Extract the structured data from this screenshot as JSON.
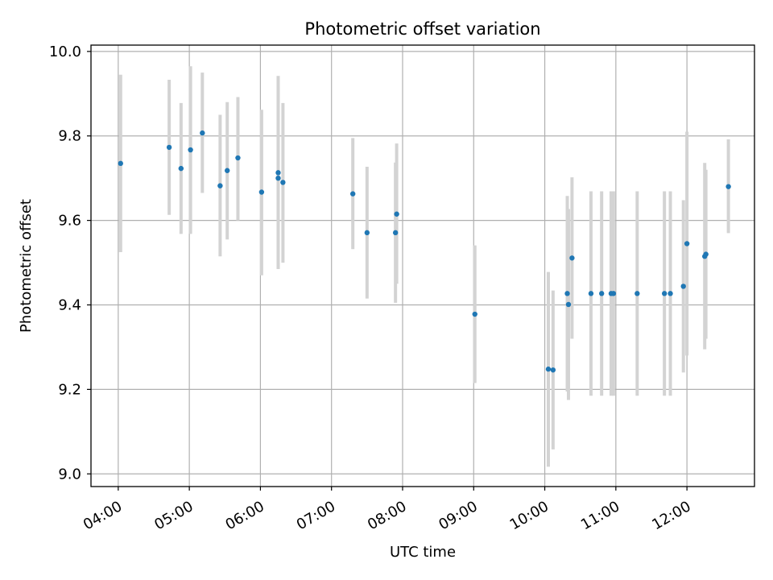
{
  "chart_data": {
    "type": "scatter",
    "title": "Photometric offset variation",
    "xlabel": "UTC time",
    "ylabel": "Photometric offset",
    "grid": true,
    "xlim": [
      "03:37",
      "12:57"
    ],
    "ylim": [
      8.97,
      10.015
    ],
    "x_ticks": [
      "04:00",
      "05:00",
      "06:00",
      "07:00",
      "08:00",
      "09:00",
      "10:00",
      "11:00",
      "12:00"
    ],
    "y_ticks": [
      9.0,
      9.2,
      9.4,
      9.6,
      9.8,
      10.0
    ],
    "y_tick_labels": [
      "9.0",
      "9.2",
      "9.4",
      "9.6",
      "9.8",
      "10.0"
    ],
    "point_color": "#1f77b4",
    "errorbar_color": "#d3d3d3",
    "series": [
      {
        "points": [
          {
            "x": "04:02",
            "y": 9.735,
            "err_low": 9.525,
            "err_high": 9.945
          },
          {
            "x": "04:43",
            "y": 9.773,
            "err_low": 9.613,
            "err_high": 9.933
          },
          {
            "x": "04:53",
            "y": 9.723,
            "err_low": 9.568,
            "err_high": 9.878
          },
          {
            "x": "05:01",
            "y": 9.767,
            "err_low": 9.568,
            "err_high": 9.965
          },
          {
            "x": "05:11",
            "y": 9.807,
            "err_low": 9.665,
            "err_high": 9.95
          },
          {
            "x": "05:26",
            "y": 9.682,
            "err_low": 9.515,
            "err_high": 9.85
          },
          {
            "x": "05:32",
            "y": 9.718,
            "err_low": 9.555,
            "err_high": 9.88
          },
          {
            "x": "05:41",
            "y": 9.748,
            "err_low": 9.6,
            "err_high": 9.892
          },
          {
            "x": "06:01",
            "y": 9.667,
            "err_low": 9.47,
            "err_high": 9.862
          },
          {
            "x": "06:15",
            "y": 9.713,
            "err_low": 9.485,
            "err_high": 9.942
          },
          {
            "x": "06:15",
            "y": 9.7,
            "err_low": 9.485,
            "err_high": 9.915
          },
          {
            "x": "06:19",
            "y": 9.69,
            "err_low": 9.5,
            "err_high": 9.878
          },
          {
            "x": "07:18",
            "y": 9.663,
            "err_low": 9.532,
            "err_high": 9.795
          },
          {
            "x": "07:30",
            "y": 9.571,
            "err_low": 9.415,
            "err_high": 9.727
          },
          {
            "x": "07:54",
            "y": 9.571,
            "err_low": 9.405,
            "err_high": 9.737
          },
          {
            "x": "07:55",
            "y": 9.615,
            "err_low": 9.45,
            "err_high": 9.782
          },
          {
            "x": "09:01",
            "y": 9.378,
            "err_low": 9.215,
            "err_high": 9.541
          },
          {
            "x": "10:03",
            "y": 9.248,
            "err_low": 9.017,
            "err_high": 9.478
          },
          {
            "x": "10:07",
            "y": 9.246,
            "err_low": 9.058,
            "err_high": 9.434
          },
          {
            "x": "10:19",
            "y": 9.427,
            "err_low": 9.195,
            "err_high": 9.658
          },
          {
            "x": "10:20",
            "y": 9.401,
            "err_low": 9.175,
            "err_high": 9.627
          },
          {
            "x": "10:23",
            "y": 9.511,
            "err_low": 9.32,
            "err_high": 9.702
          },
          {
            "x": "10:39",
            "y": 9.427,
            "err_low": 9.185,
            "err_high": 9.669
          },
          {
            "x": "10:48",
            "y": 9.427,
            "err_low": 9.185,
            "err_high": 9.669
          },
          {
            "x": "10:56",
            "y": 9.427,
            "err_low": 9.185,
            "err_high": 9.669
          },
          {
            "x": "10:58",
            "y": 9.427,
            "err_low": 9.185,
            "err_high": 9.669
          },
          {
            "x": "11:18",
            "y": 9.427,
            "err_low": 9.185,
            "err_high": 9.669
          },
          {
            "x": "11:41",
            "y": 9.427,
            "err_low": 9.185,
            "err_high": 9.669
          },
          {
            "x": "11:46",
            "y": 9.427,
            "err_low": 9.185,
            "err_high": 9.669
          },
          {
            "x": "11:57",
            "y": 9.444,
            "err_low": 9.24,
            "err_high": 9.648
          },
          {
            "x": "12:00",
            "y": 9.545,
            "err_low": 9.28,
            "err_high": 9.81
          },
          {
            "x": "12:15",
            "y": 9.515,
            "err_low": 9.295,
            "err_high": 9.736
          },
          {
            "x": "12:16",
            "y": 9.52,
            "err_low": 9.32,
            "err_high": 9.72
          },
          {
            "x": "12:35",
            "y": 9.68,
            "err_low": 9.57,
            "err_high": 9.792
          }
        ]
      }
    ]
  }
}
